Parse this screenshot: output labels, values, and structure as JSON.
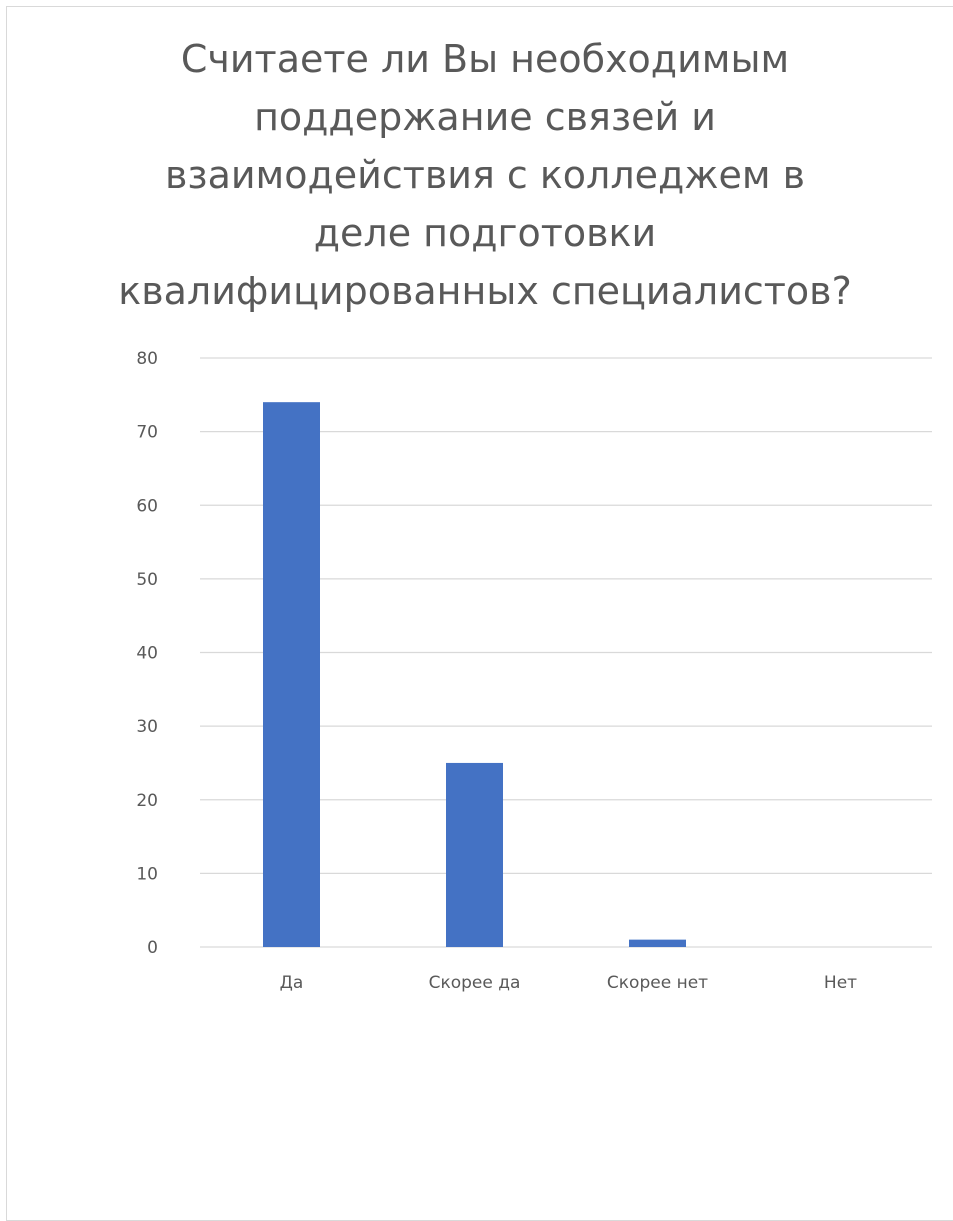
{
  "chart_data": {
    "type": "bar",
    "title": "Считаете ли Вы необходимым поддержание связей и взаимодействия с колледжем в деле подготовки квалифицированных специалистов?",
    "title_lines": [
      "Считаете ли Вы необходимым",
      "поддержание связей и",
      "взаимодействия с колледжем в",
      "деле подготовки",
      "квалифицированных специалистов?"
    ],
    "categories": [
      "Да",
      "Скорее да",
      "Скорее нет",
      "Нет"
    ],
    "values": [
      74,
      25,
      1,
      0
    ],
    "ylim": [
      0,
      80
    ],
    "yticks": [
      0,
      10,
      20,
      30,
      40,
      50,
      60,
      70,
      80
    ],
    "grid": true,
    "legend": "none",
    "colors": {
      "bar": "#4472c4",
      "grid": "#d9d9d9",
      "text": "#595959"
    }
  }
}
